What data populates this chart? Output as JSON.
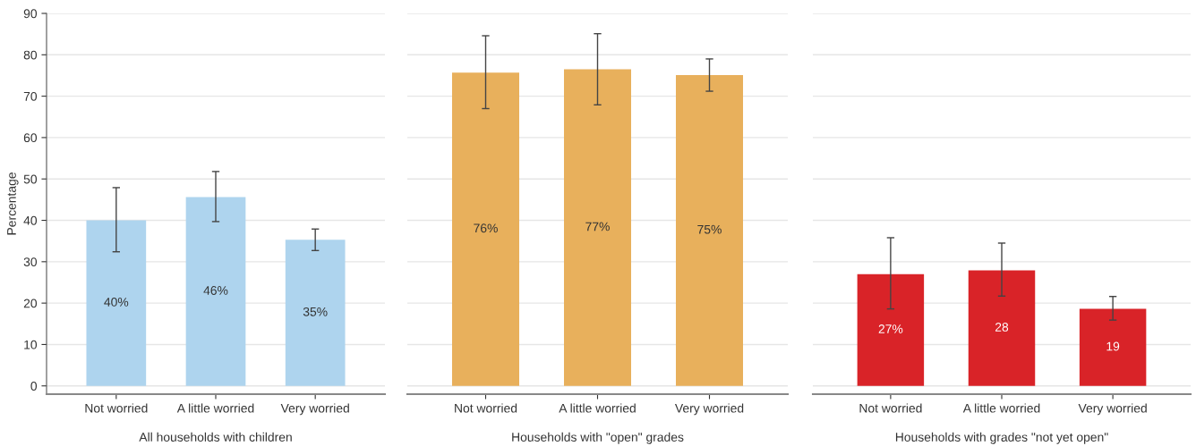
{
  "chart_data": [
    {
      "type": "bar",
      "xlabel": "All households with children",
      "ylabel": "Percentage",
      "categories": [
        "Not worried",
        "A little worried",
        "Very worried"
      ],
      "values": [
        40.0,
        45.6,
        35.3
      ],
      "color": "#aed4ee",
      "errors": [
        [
          32.4,
          47.9
        ],
        [
          39.7,
          51.8
        ],
        [
          32.7,
          37.9
        ]
      ],
      "value_labels": [
        "40%",
        "46%",
        "35%"
      ],
      "ylim": [
        -2,
        90
      ],
      "yticks": [
        0,
        10,
        20,
        30,
        40,
        50,
        60,
        70,
        80,
        90
      ],
      "grid": "y"
    },
    {
      "type": "bar",
      "xlabel": "Households with \"open\" grades",
      "categories": [
        "Not worried",
        "A little worried",
        "Very worried"
      ],
      "values": [
        75.7,
        76.5,
        75.1
      ],
      "color": "#e8b05c",
      "errors": [
        [
          67.0,
          84.6
        ],
        [
          67.9,
          85.1
        ],
        [
          71.2,
          79.0
        ]
      ],
      "value_labels": [
        "76%",
        "77%",
        "75%"
      ],
      "ylim": [
        -2,
        90
      ],
      "yticks": [
        0,
        10,
        20,
        30,
        40,
        50,
        60,
        70,
        80,
        90
      ],
      "grid": "y",
      "tick_labels": "x"
    },
    {
      "type": "bar",
      "xlabel": "Households with grades \"not yet open\"",
      "categories": [
        "Not worried",
        "A little worried",
        "Very worried"
      ],
      "values": [
        27.0,
        27.9,
        18.6
      ],
      "color": "#d92328",
      "errors": [
        [
          18.6,
          35.8
        ],
        [
          21.7,
          34.5
        ],
        [
          15.9,
          21.6
        ]
      ],
      "value_labels": [
        "27%",
        "28",
        "19"
      ],
      "ylim": [
        -2,
        90
      ],
      "yticks": [
        0,
        10,
        20,
        30,
        40,
        50,
        60,
        70,
        80,
        90
      ],
      "grid": "y",
      "tick_labels": "x"
    }
  ]
}
